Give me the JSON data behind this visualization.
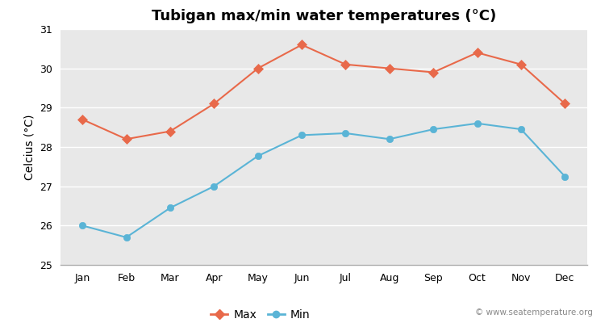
{
  "title": "Tubigan max/min water temperatures (°C)",
  "ylabel": "Celcius (°C)",
  "months": [
    "Jan",
    "Feb",
    "Mar",
    "Apr",
    "May",
    "Jun",
    "Jul",
    "Aug",
    "Sep",
    "Oct",
    "Nov",
    "Dec"
  ],
  "max_values": [
    28.7,
    28.2,
    28.4,
    29.1,
    30.0,
    30.6,
    30.1,
    30.0,
    29.9,
    30.4,
    30.1,
    29.1
  ],
  "min_values": [
    26.0,
    25.7,
    26.45,
    27.0,
    27.77,
    28.3,
    28.35,
    28.2,
    28.45,
    28.6,
    28.45,
    27.25
  ],
  "max_color": "#e8694a",
  "min_color": "#5ab4d6",
  "fig_bg_color": "#ffffff",
  "plot_bg_color": "#e8e8e8",
  "grid_color": "#ffffff",
  "bottom_bar_color": "#c8c8c8",
  "watermark": "© www.seatemperature.org",
  "legend_max": "Max",
  "legend_min": "Min",
  "ylim": [
    25,
    31
  ],
  "yticks": [
    25,
    26,
    27,
    28,
    29,
    30,
    31
  ],
  "title_fontsize": 13,
  "label_fontsize": 10,
  "tick_fontsize": 9,
  "watermark_fontsize": 7.5
}
